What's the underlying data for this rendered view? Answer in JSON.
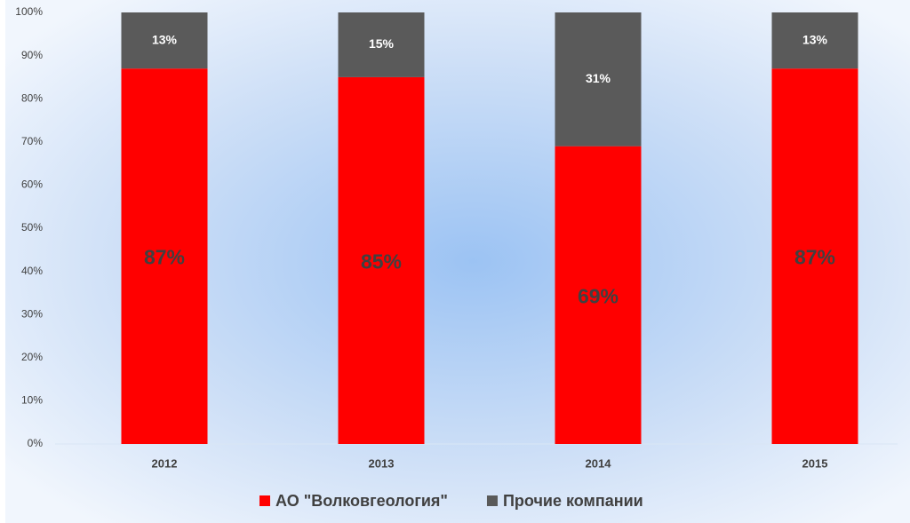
{
  "chart_data": {
    "type": "stacked_bar",
    "categories": [
      "2012",
      "2013",
      "2014",
      "2015"
    ],
    "series": [
      {
        "name": "АО \"Волковгеология\"",
        "color": "#ff0000",
        "values": [
          87,
          85,
          69,
          87
        ],
        "value_labels": [
          "87%",
          "85%",
          "69%",
          "87%"
        ]
      },
      {
        "name": "Прочие компании",
        "color": "#5a5a5a",
        "values": [
          13,
          15,
          31,
          13
        ],
        "value_labels": [
          "13%",
          "15%",
          "31%",
          "13%"
        ]
      }
    ],
    "ylim": [
      0,
      100
    ],
    "yticks": [
      {
        "value": 0,
        "label": "0%"
      },
      {
        "value": 10,
        "label": "10%"
      },
      {
        "value": 20,
        "label": "20%"
      },
      {
        "value": 30,
        "label": "30%"
      },
      {
        "value": 40,
        "label": "40%"
      },
      {
        "value": 50,
        "label": "50%"
      },
      {
        "value": 60,
        "label": "60%"
      },
      {
        "value": 70,
        "label": "70%"
      },
      {
        "value": 80,
        "label": "80%"
      },
      {
        "value": 90,
        "label": "90%"
      },
      {
        "value": 100,
        "label": "100%"
      }
    ],
    "grid": false,
    "legend": "bottom"
  }
}
